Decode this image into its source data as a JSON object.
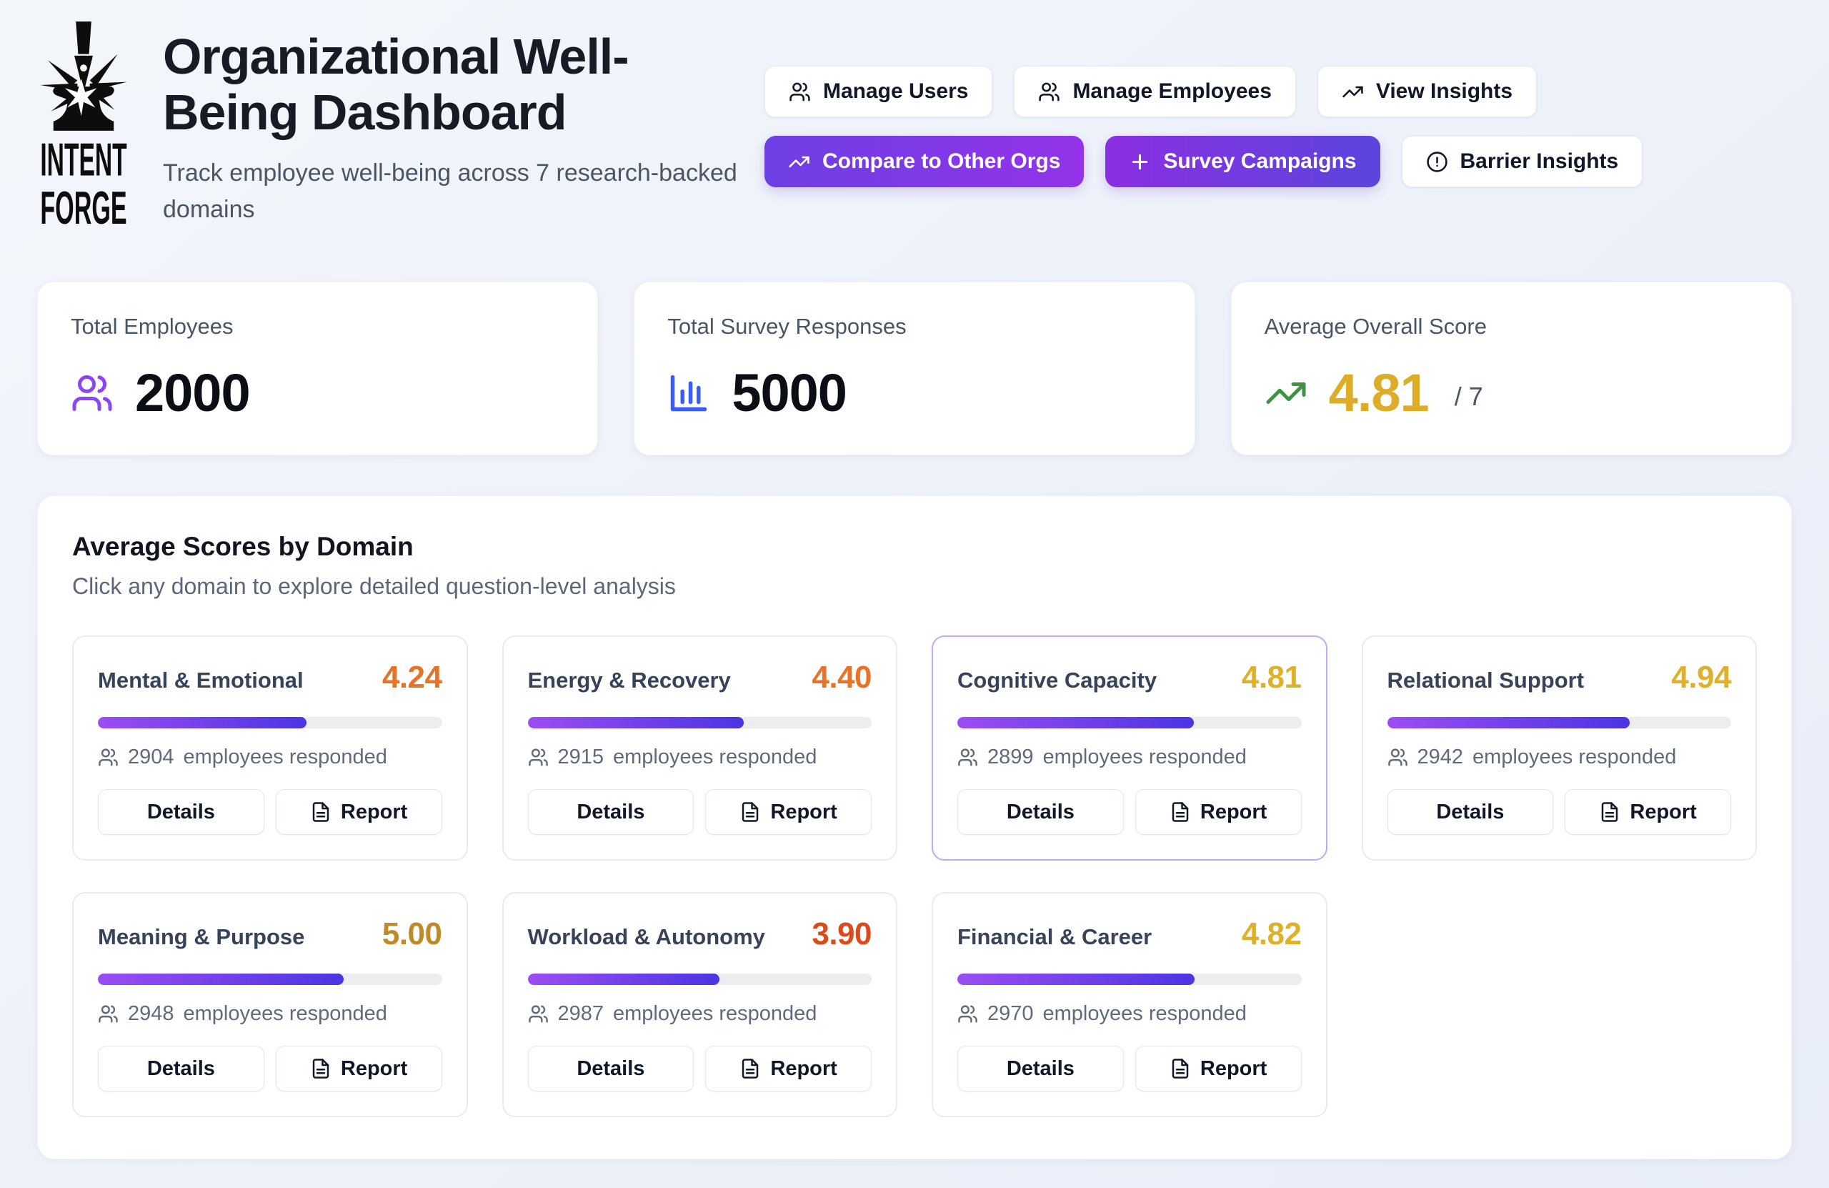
{
  "theme": {
    "page_bg_from": "#f3f6fb",
    "page_bg_to": "#e8edf8",
    "accent_purple": "#9b4df3",
    "accent_indigo": "#4b35e3",
    "bar_track": "#ededf0",
    "compare_grad_from": "#6d3fe4",
    "compare_grad_to": "#9333ea",
    "survey_grad_from": "#8b2fe2",
    "survey_grad_to": "#5b45dd"
  },
  "header": {
    "logo_line1": "INTENT",
    "logo_line2": "FORGE",
    "title": "Organizational Well-Being Dashboard",
    "subtitle": "Track employee well-being across 7 research-backed domains"
  },
  "actions": {
    "manage_users": "Manage Users",
    "manage_employees": "Manage Employees",
    "view_insights": "View Insights",
    "compare": "Compare to Other Orgs",
    "survey_campaigns": "Survey Campaigns",
    "barrier_insights": "Barrier Insights"
  },
  "stats": {
    "employees": {
      "label": "Total Employees",
      "value": "2000",
      "icon": "users-icon",
      "icon_color": "#8b45f7"
    },
    "responses": {
      "label": "Total Survey Responses",
      "value": "5000",
      "icon": "bar-chart-icon",
      "icon_color": "#3b5cf6"
    },
    "overall": {
      "label": "Average Overall Score",
      "value": "4.81",
      "suffix": "/ 7",
      "icon": "trending-up-icon",
      "icon_color": "#3d9343",
      "value_color": "#ddad27"
    }
  },
  "domains": {
    "title": "Average Scores by Domain",
    "subtitle": "Click any domain to explore detailed question-level analysis",
    "max_score": 7,
    "details_label": "Details",
    "report_label": "Report",
    "responded_suffix": "employees responded",
    "cards": [
      {
        "name": "Mental & Emotional",
        "score": "4.24",
        "responded": "2904",
        "color": "#e87327",
        "highlighted": false
      },
      {
        "name": "Energy & Recovery",
        "score": "4.40",
        "responded": "2915",
        "color": "#e87327",
        "highlighted": false
      },
      {
        "name": "Cognitive Capacity",
        "score": "4.81",
        "responded": "2899",
        "color": "#dfb02a",
        "highlighted": true
      },
      {
        "name": "Relational Support",
        "score": "4.94",
        "responded": "2942",
        "color": "#dfb02a",
        "highlighted": false
      },
      {
        "name": "Meaning & Purpose",
        "score": "5.00",
        "responded": "2948",
        "color": "#bf8b26",
        "highlighted": false
      },
      {
        "name": "Workload & Autonomy",
        "score": "3.90",
        "responded": "2987",
        "color": "#dc4a19",
        "highlighted": false
      },
      {
        "name": "Financial & Career",
        "score": "4.82",
        "responded": "2970",
        "color": "#dfb02a",
        "highlighted": false
      }
    ]
  }
}
